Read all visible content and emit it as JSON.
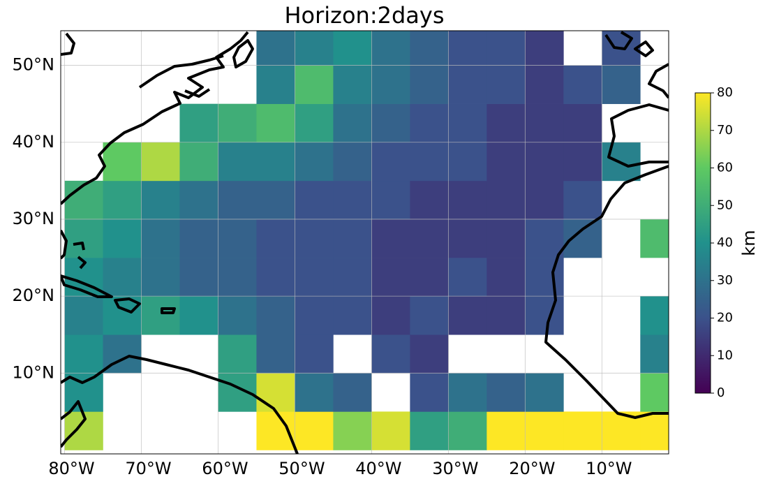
{
  "chart_data": {
    "type": "heatmap",
    "title": "Horizon:2days",
    "xbins": [
      -80,
      -75,
      -70,
      -65,
      -60,
      -55,
      -50,
      -45,
      -40,
      -35,
      -30,
      -25,
      -20,
      -15,
      -10,
      -5,
      0
    ],
    "ybins": [
      0,
      5,
      10,
      15,
      20,
      25,
      30,
      35,
      40,
      45,
      50,
      55
    ],
    "values": [
      [
        70,
        null,
        null,
        null,
        null,
        80,
        80,
        65,
        75,
        45,
        50,
        80,
        80,
        80,
        80,
        80
      ],
      [
        40,
        null,
        null,
        null,
        45,
        75,
        30,
        25,
        null,
        20,
        30,
        25,
        30,
        null,
        null,
        60
      ],
      [
        40,
        30,
        null,
        null,
        45,
        25,
        20,
        null,
        20,
        15,
        null,
        null,
        null,
        null,
        null,
        35
      ],
      [
        35,
        40,
        45,
        40,
        30,
        25,
        20,
        20,
        15,
        20,
        15,
        15,
        20,
        null,
        null,
        40
      ],
      [
        40,
        35,
        30,
        25,
        25,
        20,
        20,
        20,
        15,
        15,
        20,
        15,
        20,
        null,
        null,
        null
      ],
      [
        45,
        40,
        30,
        25,
        25,
        20,
        20,
        20,
        15,
        15,
        15,
        15,
        20,
        25,
        null,
        55
      ],
      [
        50,
        45,
        35,
        30,
        25,
        25,
        20,
        20,
        20,
        15,
        15,
        15,
        15,
        20,
        null,
        null
      ],
      [
        null,
        60,
        70,
        50,
        35,
        35,
        30,
        25,
        20,
        20,
        20,
        15,
        15,
        15,
        35,
        null
      ],
      [
        null,
        null,
        null,
        45,
        50,
        55,
        45,
        30,
        25,
        20,
        20,
        15,
        15,
        15,
        null,
        null
      ],
      [
        null,
        null,
        null,
        null,
        null,
        35,
        55,
        35,
        30,
        25,
        20,
        20,
        15,
        20,
        25,
        null
      ],
      [
        null,
        null,
        null,
        null,
        null,
        30,
        35,
        40,
        30,
        25,
        20,
        20,
        15,
        null,
        20,
        null
      ]
    ],
    "xlim": [
      -80.5,
      -1.3
    ],
    "ylim": [
      -0.5,
      54.5
    ],
    "xticks": [
      {
        "value": -80,
        "label": "80°W"
      },
      {
        "value": -70,
        "label": "70°W"
      },
      {
        "value": -60,
        "label": "60°W"
      },
      {
        "value": -50,
        "label": "50°W"
      },
      {
        "value": -40,
        "label": "40°W"
      },
      {
        "value": -30,
        "label": "30°W"
      },
      {
        "value": -20,
        "label": "20°W"
      },
      {
        "value": -10,
        "label": "10°W"
      }
    ],
    "yticks": [
      {
        "value": 10,
        "label": "10°N"
      },
      {
        "value": 20,
        "label": "20°N"
      },
      {
        "value": 30,
        "label": "30°N"
      },
      {
        "value": 40,
        "label": "40°N"
      },
      {
        "value": 50,
        "label": "50°N"
      }
    ],
    "grid": true,
    "colormap": [
      "#440154",
      "#3b528b",
      "#21918c",
      "#5ec962",
      "#fde725"
    ],
    "colorbar": {
      "label": "km",
      "lim": [
        0,
        80
      ],
      "ticks": [
        0,
        10,
        20,
        30,
        40,
        50,
        60,
        70,
        80
      ]
    }
  }
}
